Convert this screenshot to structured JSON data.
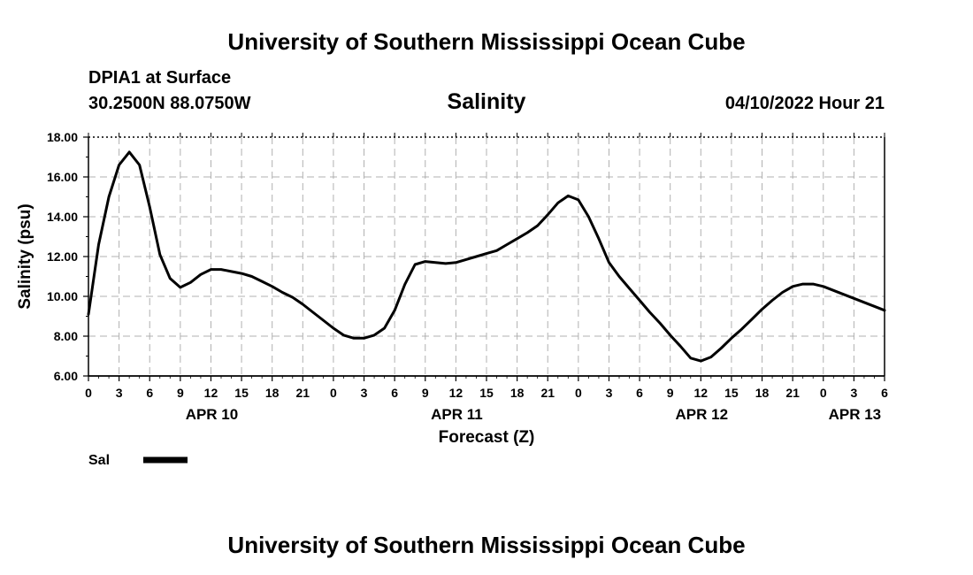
{
  "page": {
    "header_title": "University of Southern Mississippi Ocean Cube",
    "footer_title": "University of Southern Mississippi Ocean Cube",
    "station": "DPIA1 at Surface",
    "coords": "30.2500N  88.0750W",
    "plot_title": "Salinity",
    "run_time": "04/10/2022 Hour 21"
  },
  "chart_data": {
    "type": "line",
    "title": "Salinity",
    "xlabel": "Forecast (Z)",
    "ylabel": "Salinity (psu)",
    "ylim": [
      6,
      18
    ],
    "xlim": [
      0,
      78
    ],
    "y_ticks": [
      "6.00",
      "8.00",
      "10.00",
      "12.00",
      "14.00",
      "16.00",
      "18.00"
    ],
    "x_tick_labels": [
      "0",
      "3",
      "6",
      "9",
      "12",
      "15",
      "18",
      "21",
      "0",
      "3",
      "6",
      "9",
      "12",
      "15",
      "18",
      "21",
      "0",
      "3",
      "6",
      "9",
      "12",
      "15",
      "18",
      "21",
      "0",
      "3",
      "6"
    ],
    "date_labels": [
      {
        "label": "APR 10",
        "hour": 12
      },
      {
        "label": "APR 11",
        "hour": 36
      },
      {
        "label": "APR 12",
        "hour": 60
      },
      {
        "label": "APR 13",
        "hour": 75
      }
    ],
    "grid": true,
    "legend": [
      {
        "label": "Sal",
        "color": "#000000"
      }
    ],
    "series": [
      {
        "name": "Sal",
        "color": "#000000",
        "x": [
          0,
          1,
          2,
          3,
          4,
          5,
          6,
          7,
          8,
          9,
          10,
          11,
          12,
          13,
          14,
          15,
          16,
          17,
          18,
          19,
          20,
          21,
          22,
          23,
          24,
          25,
          26,
          27,
          28,
          29,
          30,
          31,
          32,
          33,
          34,
          35,
          36,
          37,
          38,
          39,
          40,
          41,
          42,
          43,
          44,
          45,
          46,
          47,
          48,
          49,
          50,
          51,
          52,
          53,
          54,
          55,
          56,
          57,
          58,
          59,
          60,
          61,
          62,
          63,
          64,
          65,
          66,
          67,
          68,
          69,
          70,
          71,
          72,
          73,
          74,
          75,
          76,
          77,
          78
        ],
        "y": [
          9.1,
          12.6,
          15.0,
          16.6,
          17.25,
          16.6,
          14.5,
          12.1,
          10.9,
          10.45,
          10.7,
          11.1,
          11.35,
          11.35,
          11.25,
          11.15,
          11.0,
          10.75,
          10.5,
          10.2,
          9.95,
          9.6,
          9.2,
          8.8,
          8.4,
          8.05,
          7.9,
          7.9,
          8.05,
          8.4,
          9.3,
          10.6,
          11.6,
          11.75,
          11.7,
          11.65,
          11.7,
          11.85,
          12.0,
          12.15,
          12.3,
          12.6,
          12.9,
          13.2,
          13.55,
          14.1,
          14.7,
          15.05,
          14.85,
          14.0,
          12.9,
          11.7,
          11.0,
          10.4,
          9.8,
          9.2,
          8.65,
          8.05,
          7.5,
          6.9,
          6.75,
          6.95,
          7.4,
          7.9,
          8.35,
          8.85,
          9.35,
          9.8,
          10.2,
          10.5,
          10.62,
          10.62,
          10.5,
          10.3,
          10.1,
          9.9,
          9.7,
          9.5,
          9.3
        ]
      }
    ]
  }
}
